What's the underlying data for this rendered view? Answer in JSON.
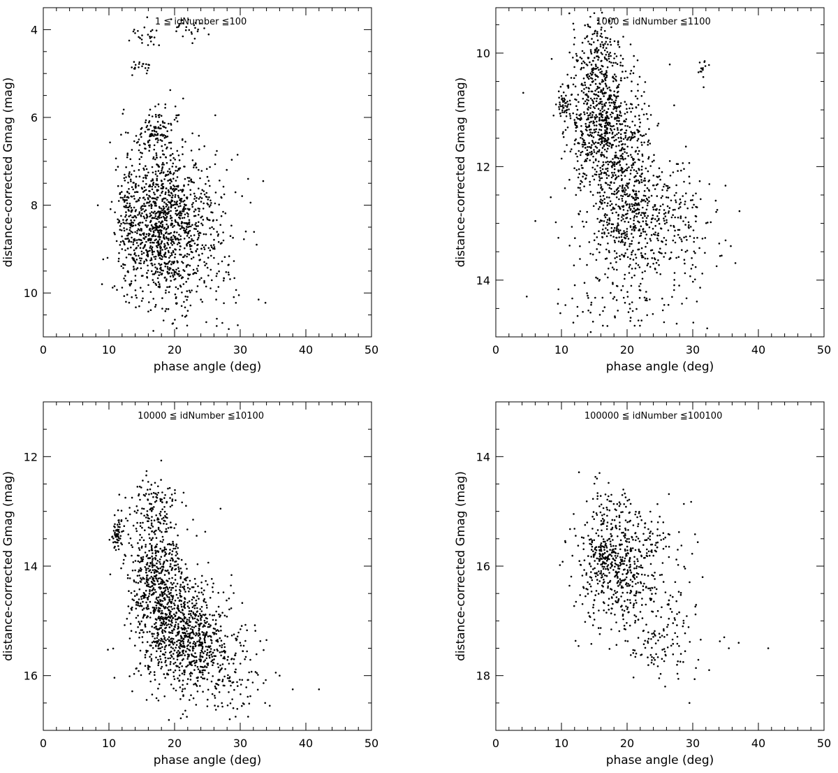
{
  "chart_data": [
    {
      "type": "scatter",
      "title": "1 ≦ idNumber ≦100",
      "xlabel": "phase angle (deg)",
      "ylabel": "distance-corrected Gmag (mag)",
      "xlim": [
        0,
        50
      ],
      "ylim": [
        3.5,
        11
      ],
      "y_inverted": true,
      "xticks": [
        0,
        10,
        20,
        30,
        40,
        50
      ],
      "yticks": [
        4,
        6,
        8,
        10
      ],
      "tick_labels_x": [
        "0",
        "10",
        "20",
        "30",
        "40",
        "50"
      ],
      "tick_labels_y": [
        "4",
        "6",
        "8",
        "10"
      ],
      "clusters": [
        {
          "cx": 18.5,
          "cy": 8.4,
          "sx": 3.2,
          "sy": 0.9,
          "n": 1150
        },
        {
          "cx": 17.0,
          "cy": 6.4,
          "sx": 1.5,
          "sy": 0.3,
          "n": 90
        },
        {
          "cx": 15.5,
          "cy": 4.2,
          "sx": 1.2,
          "sy": 0.15,
          "n": 25
        },
        {
          "cx": 22.0,
          "cy": 4.0,
          "sx": 1.8,
          "sy": 0.12,
          "n": 25
        },
        {
          "cx": 15.0,
          "cy": 4.85,
          "sx": 1.0,
          "sy": 0.08,
          "n": 20
        },
        {
          "cx": 13.0,
          "cy": 8.5,
          "sx": 0.8,
          "sy": 0.8,
          "n": 120
        },
        {
          "cx": 26.0,
          "cy": 8.8,
          "sx": 2.5,
          "sy": 1.0,
          "n": 140
        }
      ],
      "outliers": [
        {
          "x": 33.5,
          "y": 7.45
        },
        {
          "x": 32.5,
          "y": 8.9
        },
        {
          "x": 31.2,
          "y": 7.4
        },
        {
          "x": 32.8,
          "y": 10.15
        },
        {
          "x": 29.8,
          "y": 10.05
        },
        {
          "x": 29.6,
          "y": 6.85
        },
        {
          "x": 26.2,
          "y": 5.95
        },
        {
          "x": 12.6,
          "y": 10.2
        }
      ]
    },
    {
      "type": "scatter",
      "title": "1000 ≦ idNumber ≦1100",
      "xlabel": "phase angle (deg)",
      "ylabel": "distance-corrected Gmag (mag)",
      "xlim": [
        0,
        50
      ],
      "ylim": [
        9.2,
        15
      ],
      "y_inverted": true,
      "xticks": [
        0,
        10,
        20,
        30,
        40,
        50
      ],
      "yticks": [
        10,
        12,
        14
      ],
      "tick_labels_x": [
        "0",
        "10",
        "20",
        "30",
        "40",
        "50"
      ],
      "tick_labels_y": [
        "10",
        "12",
        "14"
      ],
      "clusters": [
        {
          "cx": 16.5,
          "cy": 11.2,
          "sx": 2.8,
          "sy": 0.55,
          "n": 700
        },
        {
          "cx": 20.0,
          "cy": 12.7,
          "sx": 3.5,
          "sy": 0.65,
          "n": 650
        },
        {
          "cx": 15.5,
          "cy": 10.0,
          "sx": 1.8,
          "sy": 0.4,
          "n": 160
        },
        {
          "cx": 27.5,
          "cy": 13.2,
          "sx": 3.5,
          "sy": 0.55,
          "n": 160
        },
        {
          "cx": 10.5,
          "cy": 10.9,
          "sx": 0.6,
          "sy": 0.15,
          "n": 40
        },
        {
          "cx": 19.0,
          "cy": 14.5,
          "sx": 5.0,
          "sy": 0.2,
          "n": 60
        },
        {
          "cx": 31.5,
          "cy": 10.3,
          "sx": 0.4,
          "sy": 0.12,
          "n": 14
        }
      ],
      "outliers": [
        {
          "x": 36.5,
          "y": 13.7
        },
        {
          "x": 35.8,
          "y": 13.4
        },
        {
          "x": 35.0,
          "y": 13.3
        },
        {
          "x": 33.5,
          "y": 12.6
        },
        {
          "x": 8.8,
          "y": 11.1
        },
        {
          "x": 26.5,
          "y": 10.2
        },
        {
          "x": 32.2,
          "y": 14.85
        },
        {
          "x": 11.2,
          "y": 9.3
        }
      ]
    },
    {
      "type": "scatter",
      "title": "10000 ≦ idNumber ≦10100",
      "xlabel": "phase angle (deg)",
      "ylabel": "distance-corrected Gmag (mag)",
      "xlim": [
        0,
        50
      ],
      "ylim": [
        11,
        17
      ],
      "y_inverted": true,
      "xticks": [
        0,
        10,
        20,
        30,
        40,
        50
      ],
      "yticks": [
        12,
        14,
        16
      ],
      "tick_labels_x": [
        "0",
        "10",
        "20",
        "30",
        "40",
        "50"
      ],
      "tick_labels_y": [
        "12",
        "14",
        "16"
      ],
      "clusters": [
        {
          "cx": 17.0,
          "cy": 14.2,
          "sx": 2.2,
          "sy": 0.75,
          "n": 600
        },
        {
          "cx": 21.5,
          "cy": 15.2,
          "sx": 3.2,
          "sy": 0.55,
          "n": 750
        },
        {
          "cx": 11.2,
          "cy": 13.4,
          "sx": 0.6,
          "sy": 0.15,
          "n": 60
        },
        {
          "cx": 17.0,
          "cy": 12.9,
          "sx": 2.0,
          "sy": 0.25,
          "n": 70
        },
        {
          "cx": 27.5,
          "cy": 15.9,
          "sx": 3.0,
          "sy": 0.45,
          "n": 180
        },
        {
          "cx": 15.0,
          "cy": 15.9,
          "sx": 1.5,
          "sy": 0.1,
          "n": 15
        }
      ],
      "outliers": [
        {
          "x": 10.2,
          "y": 14.15
        },
        {
          "x": 42.0,
          "y": 16.25
        },
        {
          "x": 38.0,
          "y": 16.25
        },
        {
          "x": 36.0,
          "y": 16.0
        },
        {
          "x": 34.5,
          "y": 16.55
        },
        {
          "x": 33.8,
          "y": 16.5
        },
        {
          "x": 31.2,
          "y": 16.75
        },
        {
          "x": 29.3,
          "y": 16.75
        },
        {
          "x": 27.0,
          "y": 12.95
        },
        {
          "x": 34.0,
          "y": 15.35
        }
      ]
    },
    {
      "type": "scatter",
      "title": "100000 ≦ idNumber ≦100100",
      "xlabel": "phase angle (deg)",
      "ylabel": "distance-corrected Gmag (mag)",
      "xlim": [
        0,
        50
      ],
      "ylim": [
        13,
        19
      ],
      "y_inverted": true,
      "xticks": [
        0,
        10,
        20,
        30,
        40,
        50
      ],
      "yticks": [
        14,
        16,
        18
      ],
      "tick_labels_x": [
        "0",
        "10",
        "20",
        "30",
        "40",
        "50"
      ],
      "tick_labels_y": [
        "14",
        "16",
        "18"
      ],
      "clusters": [
        {
          "cx": 18.5,
          "cy": 16.0,
          "sx": 3.2,
          "sy": 0.55,
          "n": 500
        },
        {
          "cx": 16.5,
          "cy": 15.8,
          "sx": 1.0,
          "sy": 0.15,
          "n": 70
        },
        {
          "cx": 25.5,
          "cy": 17.1,
          "sx": 2.8,
          "sy": 0.5,
          "n": 150
        },
        {
          "cx": 17.0,
          "cy": 14.8,
          "sx": 1.5,
          "sy": 0.25,
          "n": 40
        },
        {
          "cx": 24.0,
          "cy": 15.5,
          "sx": 3.0,
          "sy": 0.35,
          "n": 50
        }
      ],
      "outliers": [
        {
          "x": 41.5,
          "y": 17.5
        },
        {
          "x": 37.0,
          "y": 17.4
        },
        {
          "x": 35.5,
          "y": 17.5
        },
        {
          "x": 34.8,
          "y": 17.3
        },
        {
          "x": 32.5,
          "y": 17.9
        },
        {
          "x": 29.5,
          "y": 18.5
        },
        {
          "x": 25.8,
          "y": 18.2
        },
        {
          "x": 31.5,
          "y": 16.2
        },
        {
          "x": 15.8,
          "y": 14.3
        },
        {
          "x": 15.4,
          "y": 14.4
        }
      ]
    }
  ]
}
